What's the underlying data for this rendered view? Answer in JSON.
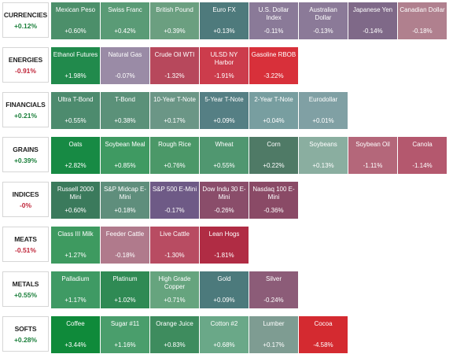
{
  "groups": [
    {
      "name": "CURRENCIES",
      "change": "+0.12%",
      "color": "#1a7f3a",
      "tiles": [
        {
          "name": "Mexican Peso",
          "change": "+0.60%",
          "bg": "#4c8f6a"
        },
        {
          "name": "Swiss Franc",
          "change": "+0.42%",
          "bg": "#5a9b76"
        },
        {
          "name": "British Pound",
          "change": "+0.39%",
          "bg": "#6b9f80"
        },
        {
          "name": "Euro FX",
          "change": "+0.13%",
          "bg": "#4e7a7c"
        },
        {
          "name": "U.S. Dollar Index",
          "change": "-0.11%",
          "bg": "#8a7a98"
        },
        {
          "name": "Australian Dollar",
          "change": "-0.13%",
          "bg": "#8b7a98"
        },
        {
          "name": "Japanese Yen",
          "change": "-0.14%",
          "bg": "#7f6988"
        },
        {
          "name": "Canadian Dollar",
          "change": "-0.18%",
          "bg": "#b0808e"
        }
      ]
    },
    {
      "name": "ENERGIES",
      "change": "-0.91%",
      "color": "#c0263a",
      "tiles": [
        {
          "name": "Ethanol Futures",
          "change": "+1.98%",
          "bg": "#218a4c"
        },
        {
          "name": "Natural Gas",
          "change": "-0.07%",
          "bg": "#9a8ba6"
        },
        {
          "name": "Crude Oil WTI",
          "change": "-1.32%",
          "bg": "#b7485c"
        },
        {
          "name": "ULSD NY Harbor",
          "change": "-1.91%",
          "bg": "#cc3c4c"
        },
        {
          "name": "Gasoline RBOB",
          "change": "-3.22%",
          "bg": "#d8303a"
        }
      ]
    },
    {
      "name": "FINANCIALS",
      "change": "+0.21%",
      "color": "#1a7f3a",
      "tiles": [
        {
          "name": "Ultra T-Bond",
          "change": "+0.55%",
          "bg": "#4d8b6e"
        },
        {
          "name": "T-Bond",
          "change": "+0.38%",
          "bg": "#5b9179"
        },
        {
          "name": "10-Year T-Note",
          "change": "+0.17%",
          "bg": "#6b9686"
        },
        {
          "name": "5-Year T-Note",
          "change": "+0.09%",
          "bg": "#557f84"
        },
        {
          "name": "2-Year T-Note",
          "change": "+0.04%",
          "bg": "#789ea0"
        },
        {
          "name": "Eurodollar",
          "change": "+0.01%",
          "bg": "#80a0a4"
        }
      ]
    },
    {
      "name": "GRAINS",
      "change": "+0.39%",
      "color": "#1a7f3a",
      "tiles": [
        {
          "name": "Oats",
          "change": "+2.82%",
          "bg": "#178a44"
        },
        {
          "name": "Soybean Meal",
          "change": "+0.85%",
          "bg": "#3f9a62"
        },
        {
          "name": "Rough Rice",
          "change": "+0.76%",
          "bg": "#4b9868"
        },
        {
          "name": "Wheat",
          "change": "+0.55%",
          "bg": "#509770"
        },
        {
          "name": "Corn",
          "change": "+0.22%",
          "bg": "#4f7a66"
        },
        {
          "name": "Soybeans",
          "change": "+0.13%",
          "bg": "#8aaea0"
        },
        {
          "name": "Soybean Oil",
          "change": "-1.11%",
          "bg": "#b4677a"
        },
        {
          "name": "Canola",
          "change": "-1.14%",
          "bg": "#b4586e"
        }
      ]
    },
    {
      "name": "INDICES",
      "change": "-0%",
      "color": "#c0263a",
      "tiles": [
        {
          "name": "Russell 2000 Mini",
          "change": "+0.60%",
          "bg": "#3b7a5c"
        },
        {
          "name": "S&P Midcap E-Mini",
          "change": "+0.18%",
          "bg": "#5f8e7c"
        },
        {
          "name": "S&P 500 E-Mini",
          "change": "-0.17%",
          "bg": "#6e5a86"
        },
        {
          "name": "Dow Indu 30 E-Mini",
          "change": "-0.26%",
          "bg": "#8a4d6a"
        },
        {
          "name": "Nasdaq 100 E-Mini",
          "change": "-0.36%",
          "bg": "#8a4a66"
        }
      ]
    },
    {
      "name": "MEATS",
      "change": "-0.51%",
      "color": "#c0263a",
      "tiles": [
        {
          "name": "Class III Milk",
          "change": "+1.27%",
          "bg": "#3e9a60"
        },
        {
          "name": "Feeder Cattle",
          "change": "-0.18%",
          "bg": "#b07a8c"
        },
        {
          "name": "Live Cattle",
          "change": "-1.30%",
          "bg": "#b84c62"
        },
        {
          "name": "Lean Hogs",
          "change": "-1.81%",
          "bg": "#b02c44"
        }
      ]
    },
    {
      "name": "METALS",
      "change": "+0.55%",
      "color": "#1a7f3a",
      "tiles": [
        {
          "name": "Palladium",
          "change": "+1.17%",
          "bg": "#3f9a64"
        },
        {
          "name": "Platinum",
          "change": "+1.02%",
          "bg": "#2f8a54"
        },
        {
          "name": "High Grade Copper",
          "change": "+0.71%",
          "bg": "#66a47e"
        },
        {
          "name": "Gold",
          "change": "+0.09%",
          "bg": "#4c7a7c"
        },
        {
          "name": "Silver",
          "change": "-0.24%",
          "bg": "#8c5c78"
        }
      ]
    },
    {
      "name": "SOFTS",
      "change": "+0.28%",
      "color": "#1a7f3a",
      "tiles": [
        {
          "name": "Coffee",
          "change": "+3.44%",
          "bg": "#0f8a3a"
        },
        {
          "name": "Sugar #11",
          "change": "+1.16%",
          "bg": "#4a9e6c"
        },
        {
          "name": "Orange Juice",
          "change": "+0.83%",
          "bg": "#3e8c5e"
        },
        {
          "name": "Cotton #2",
          "change": "+0.68%",
          "bg": "#6aa888"
        },
        {
          "name": "Lumber",
          "change": "+0.17%",
          "bg": "#7e9c92"
        },
        {
          "name": "Cocoa",
          "change": "-4.58%",
          "bg": "#d42a30"
        }
      ]
    }
  ]
}
